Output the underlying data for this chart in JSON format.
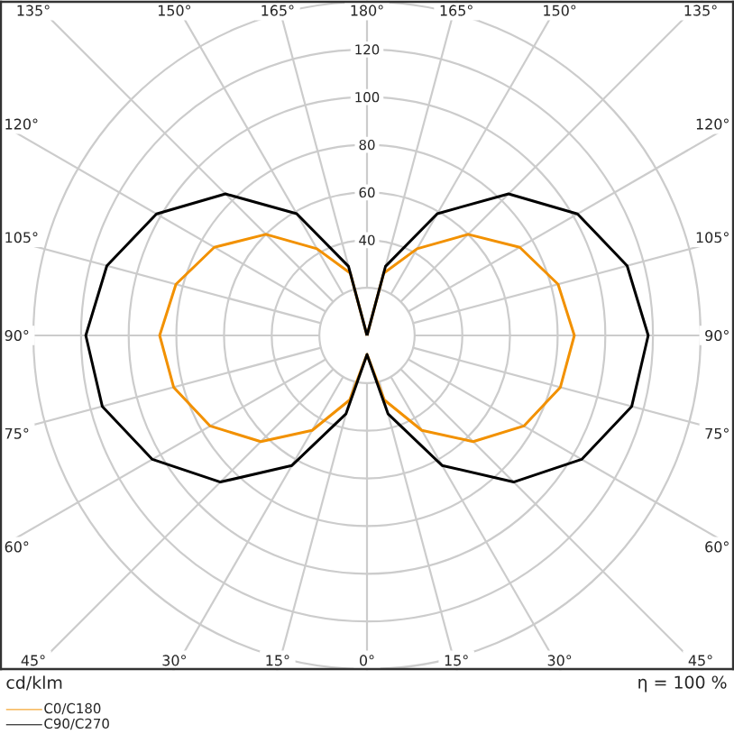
{
  "chart_data": {
    "type": "radar",
    "categories": [
      "180°",
      "165°",
      "150°",
      "135°",
      "120°",
      "105°",
      "90°",
      "75°",
      "60°",
      "45°",
      "30°",
      "15°",
      "0°",
      "15°",
      "30°",
      "45°",
      "60°",
      "75°",
      "90°",
      "105°",
      "120°",
      "135°",
      "150°",
      "165°"
    ],
    "series": [
      {
        "name": "C0/C180",
        "color": "#f29100",
        "values": [
          0,
          27,
          42,
          60,
          74,
          83,
          87,
          84,
          76,
          63,
          46,
          28,
          8,
          28,
          46,
          63,
          76,
          84,
          87,
          83,
          74,
          60,
          42,
          27
        ]
      },
      {
        "name": "C90/C270",
        "color": "#000000",
        "values": [
          0,
          30,
          59,
          84,
          102,
          113,
          118,
          115,
          104,
          87,
          63,
          34,
          8,
          34,
          63,
          87,
          104,
          115,
          118,
          113,
          102,
          84,
          59,
          30
        ]
      }
    ],
    "ylim": [
      0,
      140
    ],
    "yticks": [
      40,
      60,
      80,
      100,
      120
    ],
    "ylabel": "cd/klm",
    "annotations": [
      "η = 100 %"
    ],
    "grid": true,
    "legend": "bottom left",
    "line_style": "solid"
  }
}
